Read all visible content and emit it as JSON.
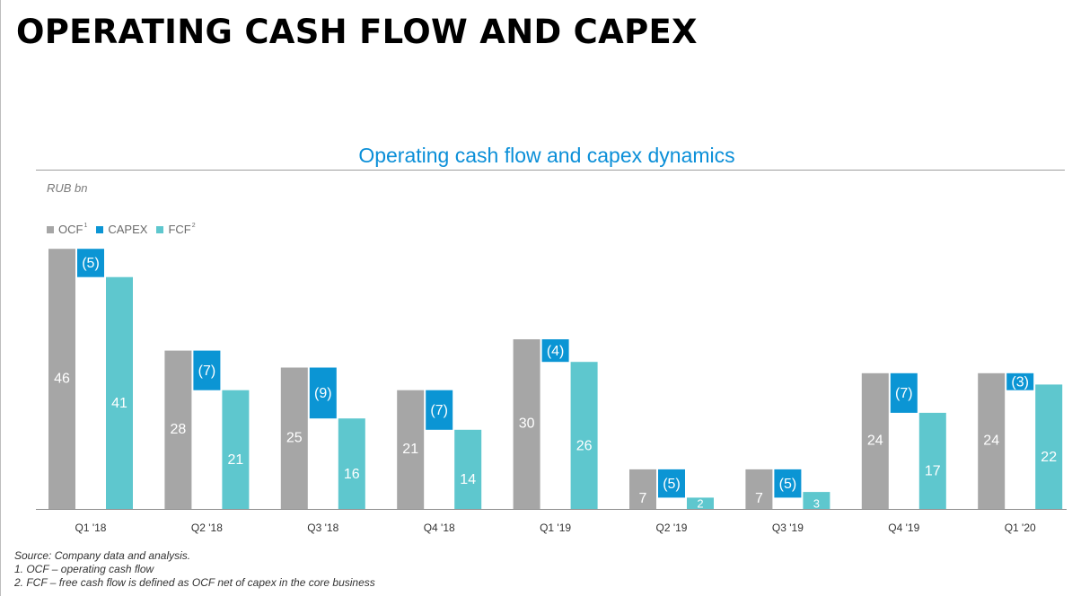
{
  "page": {
    "title": "OPERATING CASH FLOW AND CAPEX"
  },
  "legend": [
    {
      "label": "OCF",
      "sup": "1",
      "color": "#a6a6a6"
    },
    {
      "label": "CAPEX",
      "sup": "",
      "color": "#0b95d4"
    },
    {
      "label": "FCF",
      "sup": "2",
      "color": "#5ec7ce"
    }
  ],
  "chart_data": {
    "type": "bar",
    "title": "Operating cash flow and capex dynamics",
    "unit": "RUB bn",
    "categories": [
      "Q1 '18",
      "Q2 '18",
      "Q3 '18",
      "Q4 '18",
      "Q1 '19",
      "Q2 '19",
      "Q3 '19",
      "Q4 '19",
      "Q1 '20"
    ],
    "series": [
      {
        "name": "OCF",
        "values": [
          46,
          28,
          25,
          21,
          30,
          7,
          7,
          24,
          24
        ]
      },
      {
        "name": "CAPEX",
        "values": [
          -5,
          -7,
          -9,
          -7,
          -4,
          -5,
          -5,
          -7,
          -3
        ]
      },
      {
        "name": "FCF",
        "values": [
          41,
          21,
          16,
          14,
          26,
          2,
          3,
          17,
          22
        ]
      }
    ],
    "grid": false,
    "legend_position": "top-left"
  },
  "notes": {
    "source": "Source: Company data and analysis.",
    "note1": "1.  OCF – operating cash flow",
    "note2": "2.  FCF – free cash flow is defined as OCF net of capex in the core business"
  }
}
